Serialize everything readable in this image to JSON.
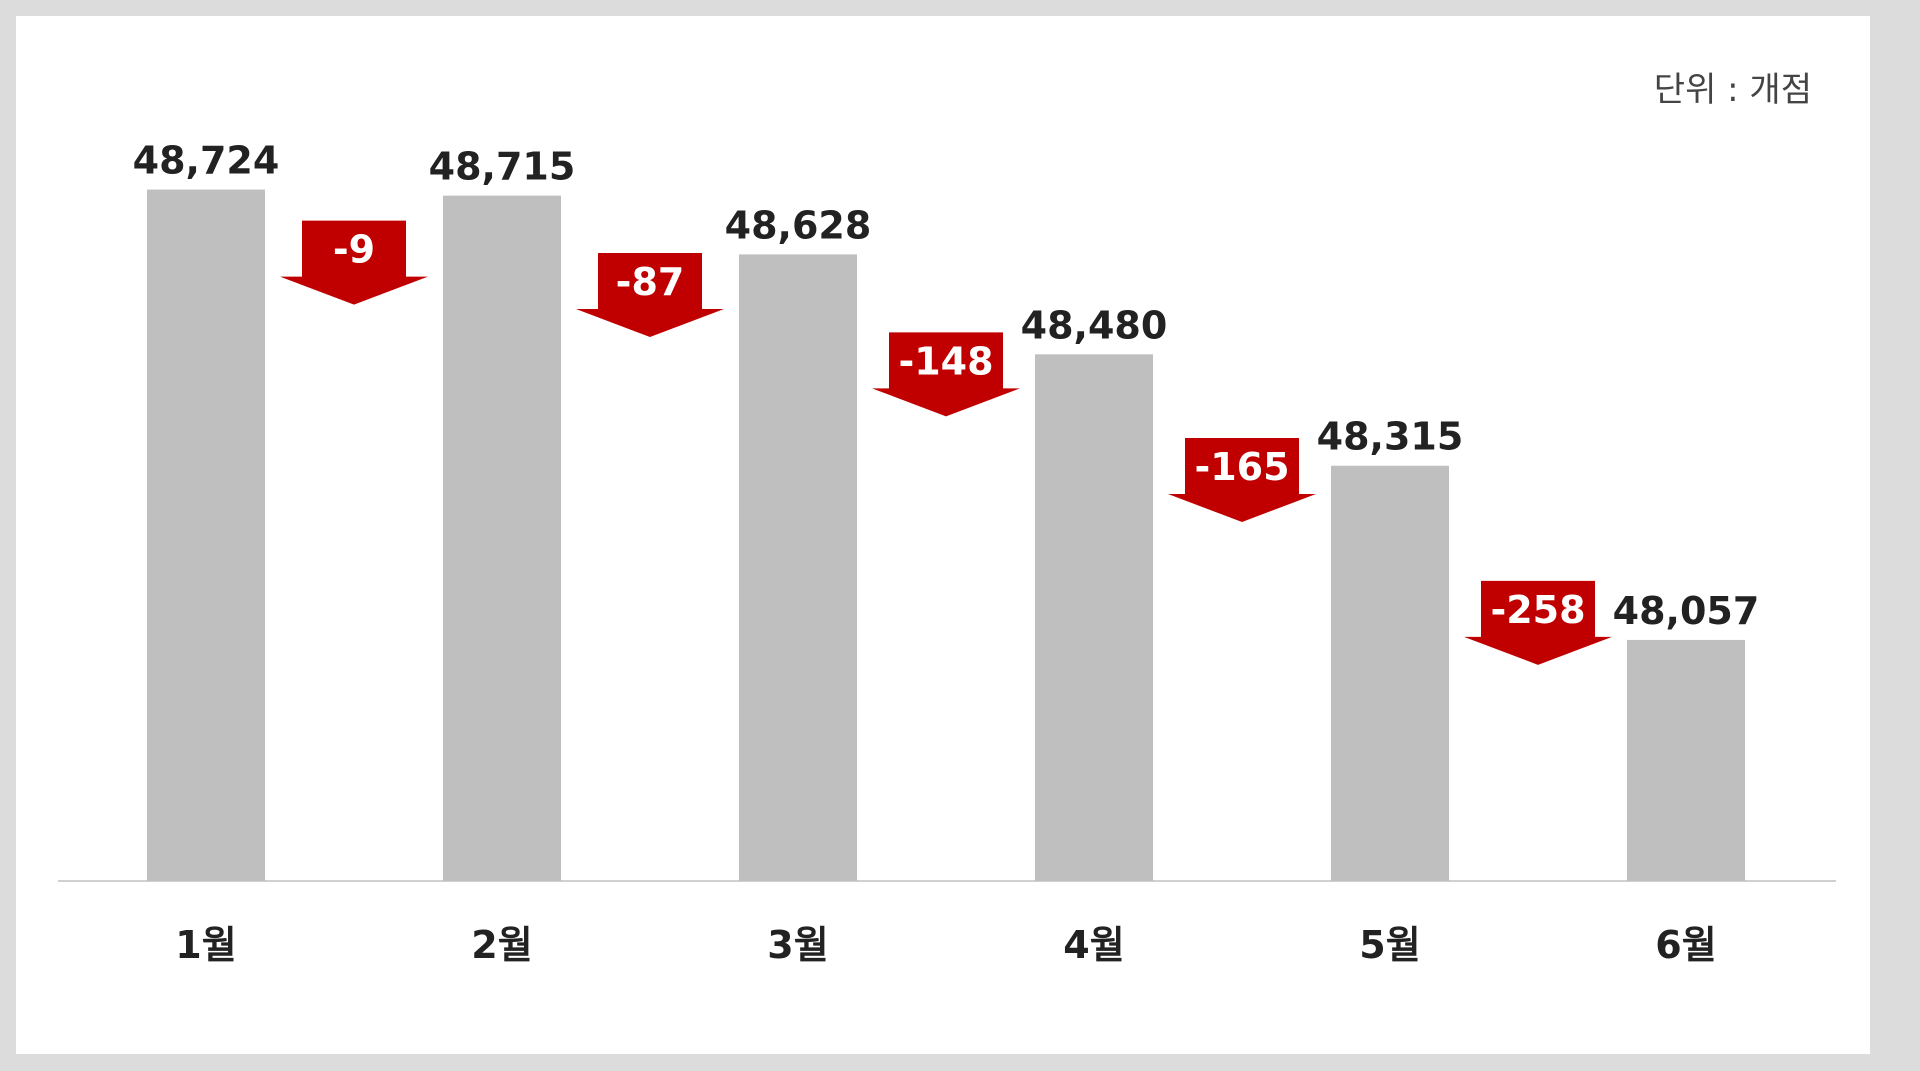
{
  "unit_label": "단위 : 개점",
  "colors": {
    "bar": "#bfbfbf",
    "arrow": "#c00000",
    "axis": "#d0d0d0",
    "text": "#222222"
  },
  "chart_data": {
    "type": "bar",
    "categories": [
      "1월",
      "2월",
      "3월",
      "4월",
      "5월",
      "6월"
    ],
    "values": [
      48724,
      48715,
      48628,
      48480,
      48315,
      48057
    ],
    "value_labels": [
      "48,724",
      "48,715",
      "48,628",
      "48,480",
      "48,315",
      "48,057"
    ],
    "changes": [
      -9,
      -87,
      -148,
      -165,
      -258
    ],
    "change_labels": [
      "-9",
      "-87",
      "-148",
      "-165",
      "-258"
    ],
    "ylim": [
      47700,
      48750
    ],
    "grid": false,
    "legend": "none"
  }
}
